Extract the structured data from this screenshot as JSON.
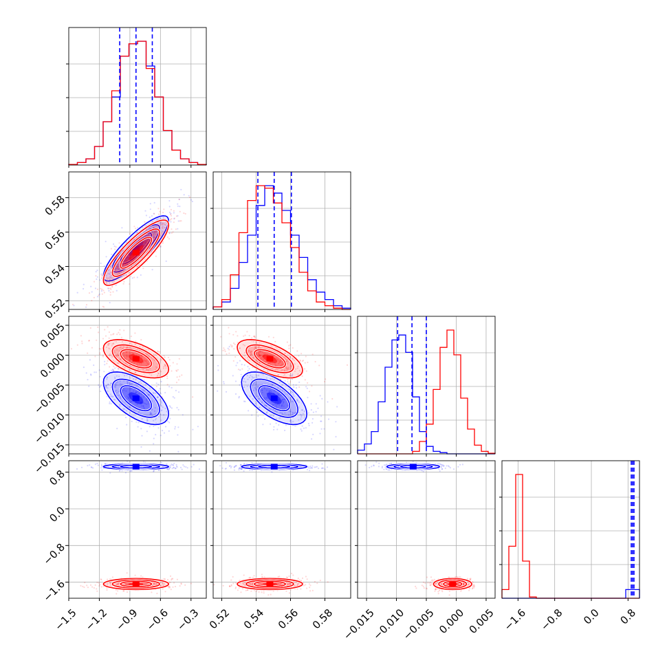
{
  "chart_data": {
    "type": "corner",
    "title": "",
    "params": [
      {
        "range": [
          -1.5,
          -0.15
        ],
        "ticks": [
          -1.5,
          -1.2,
          -0.9,
          -0.6,
          -0.3
        ],
        "tick_labels": [
          "−1.5",
          "−1.2",
          "−0.9",
          "−0.6",
          "−0.3"
        ]
      },
      {
        "range": [
          0.515,
          0.595
        ],
        "ticks": [
          0.52,
          0.54,
          0.56,
          0.58
        ],
        "tick_labels": [
          "0.52",
          "0.54",
          "0.56",
          "0.58"
        ]
      },
      {
        "range": [
          -0.0165,
          0.0065
        ],
        "ticks": [
          -0.015,
          -0.01,
          -0.005,
          0.0,
          0.005
        ],
        "tick_labels": [
          "−0.015",
          "−0.010",
          "−0.005",
          "0.000",
          "0.005"
        ]
      },
      {
        "range": [
          -1.95,
          1.05
        ],
        "ticks": [
          -1.6,
          -0.8,
          0.0,
          0.8
        ],
        "tick_labels": [
          "−1.6",
          "−0.8",
          "0.0",
          "0.8"
        ]
      }
    ],
    "series": [
      {
        "name": "",
        "color": "#0000ff",
        "mean": [
          -0.84,
          0.5505,
          -0.0072,
          0.92
        ],
        "std": [
          0.16,
          0.0095,
          0.0022,
          0.03
        ],
        "corr": {
          "0-1": 0.85,
          "0-2": -0.6,
          "1-2": -0.6
        },
        "hist": [
          [
            0.005,
            0.02,
            0.05,
            0.15,
            0.35,
            0.55,
            0.88,
            0.98,
            1.0,
            0.8,
            0.55,
            0.28,
            0.12,
            0.05,
            0.02,
            0.005
          ],
          [
            0.02,
            0.06,
            0.17,
            0.38,
            0.6,
            0.84,
            1.0,
            0.94,
            0.8,
            0.6,
            0.42,
            0.24,
            0.14,
            0.08,
            0.03,
            0.01
          ],
          [
            0.03,
            0.08,
            0.18,
            0.42,
            0.7,
            0.92,
            0.96,
            0.82,
            0.46,
            0.18,
            0.06,
            0.02,
            0.01,
            0.0,
            0.0,
            0.0,
            0.0,
            0.0,
            0.0,
            0.0
          ],
          [
            0.0,
            0.0,
            0.0,
            0.0,
            0.0,
            0.0,
            0.0,
            0.0,
            0.0,
            0.0,
            0.0,
            0.0,
            0.0,
            0.0,
            0.0,
            0.0,
            0.0,
            0.0,
            0.07,
            0.07
          ]
        ]
      },
      {
        "name": "",
        "color": "#ff0000",
        "mean": [
          -0.84,
          0.548,
          -0.0006,
          -1.64
        ],
        "std": [
          0.16,
          0.0095,
          0.0016,
          0.06
        ],
        "corr": {
          "0-1": 0.85,
          "0-2": -0.55,
          "1-2": -0.6
        },
        "hist": [
          [
            0.005,
            0.02,
            0.05,
            0.15,
            0.35,
            0.6,
            0.88,
            0.98,
            1.0,
            0.78,
            0.55,
            0.28,
            0.12,
            0.05,
            0.02,
            0.005
          ],
          [
            0.02,
            0.08,
            0.28,
            0.62,
            0.88,
            1.0,
            0.98,
            0.86,
            0.7,
            0.5,
            0.3,
            0.15,
            0.06,
            0.03,
            0.01,
            0.0
          ],
          [
            0.0,
            0.0,
            0.0,
            0.0,
            0.0,
            0.0,
            0.0,
            0.0,
            0.02,
            0.1,
            0.24,
            0.52,
            0.86,
            1.0,
            0.8,
            0.45,
            0.2,
            0.07,
            0.02,
            0.005
          ],
          [
            0.07,
            0.42,
            1.0,
            0.3,
            0.01,
            0.0,
            0.0,
            0.0,
            0.0,
            0.0,
            0.0,
            0.0,
            0.0,
            0.0,
            0.0,
            0.0,
            0.0,
            0.0,
            0.0,
            0.0
          ]
        ]
      }
    ],
    "quantile_lines": {
      "color": "#0000ff",
      "values": [
        [
          -1.0,
          -0.84,
          -0.68
        ],
        [
          0.541,
          0.5505,
          0.5605
        ],
        [
          -0.0098,
          -0.0074,
          -0.005
        ],
        [
          0.87,
          0.9,
          0.93
        ]
      ]
    },
    "grid": true,
    "legend": "none"
  }
}
